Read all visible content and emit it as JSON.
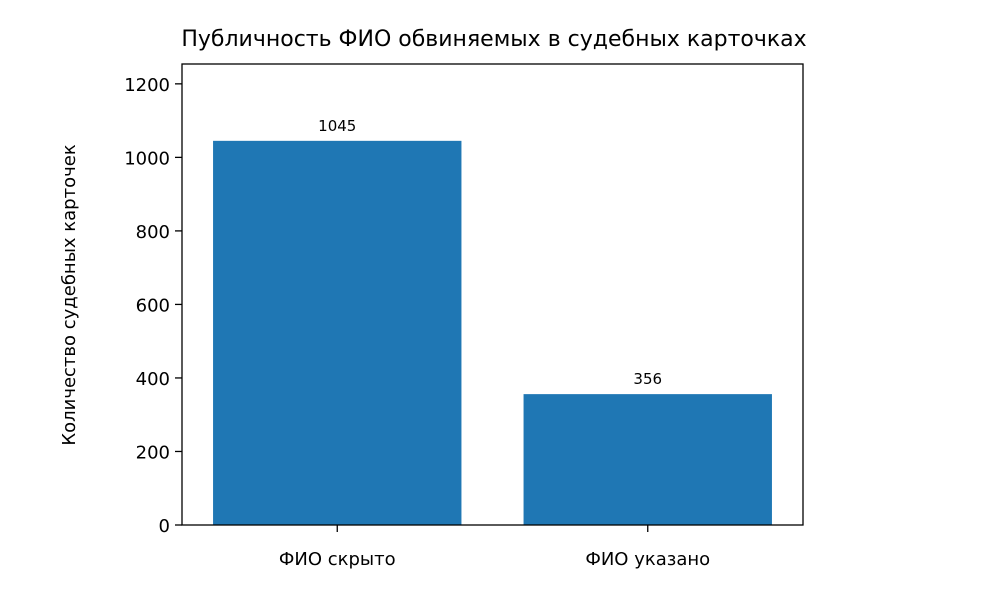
{
  "chart_data": {
    "type": "bar",
    "title": "Публичность ФИО обвиняемых в судебных карточках",
    "xlabel": "",
    "ylabel": "Количество судебных карточек",
    "categories": [
      "ФИО скрыто",
      "ФИО указано"
    ],
    "values": [
      1045,
      356
    ],
    "data_labels": [
      "1045",
      "356"
    ],
    "ylim": [
      0,
      1254
    ],
    "yticks": [
      0,
      200,
      400,
      600,
      800,
      1000,
      1200
    ],
    "grid": false,
    "bar_color": "#1f77b4"
  }
}
